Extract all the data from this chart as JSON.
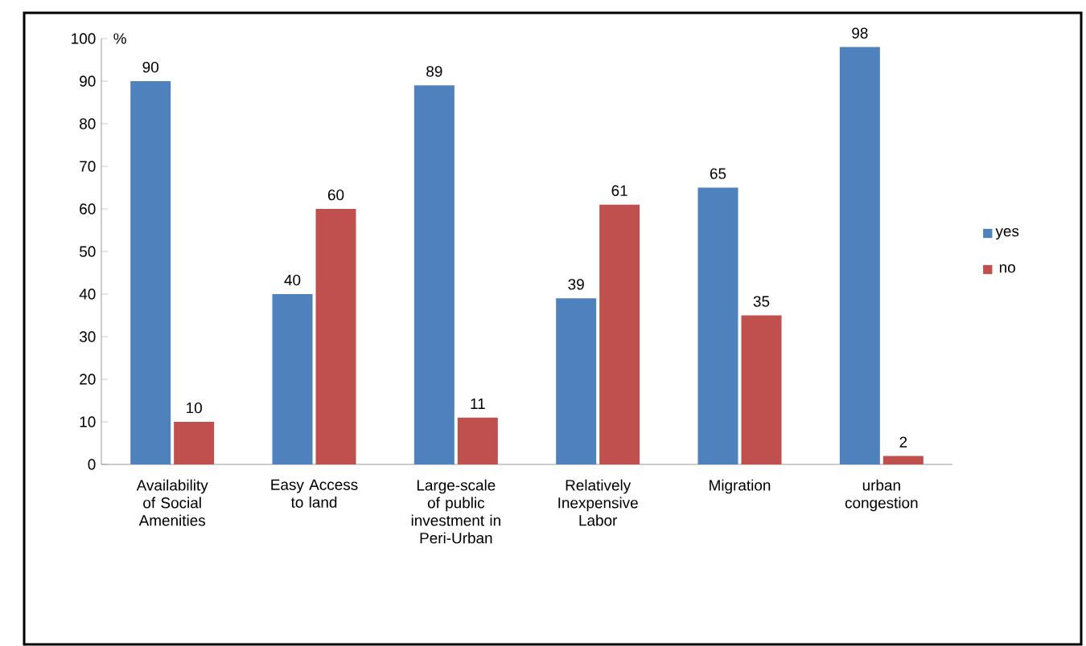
{
  "chart_data": {
    "type": "bar",
    "ylabel": "%",
    "categories": [
      "Availability of Social Amenities",
      "Easy Access to land",
      "Large-scale of public investment in Peri-Urban",
      "Relatively Inexpensive Labor",
      "Migration",
      "urban congestion"
    ],
    "series": [
      {
        "name": "yes",
        "color": "#4f81bd",
        "values": [
          90,
          40,
          89,
          39,
          65,
          98
        ]
      },
      {
        "name": "no",
        "color": "#c0504d",
        "values": [
          10,
          60,
          11,
          61,
          35,
          2
        ]
      }
    ],
    "ylim": [
      0,
      100
    ],
    "yticks": [
      0,
      10,
      20,
      30,
      40,
      50,
      60,
      70,
      80,
      90,
      100
    ],
    "data_labels": true,
    "legend": "right"
  }
}
